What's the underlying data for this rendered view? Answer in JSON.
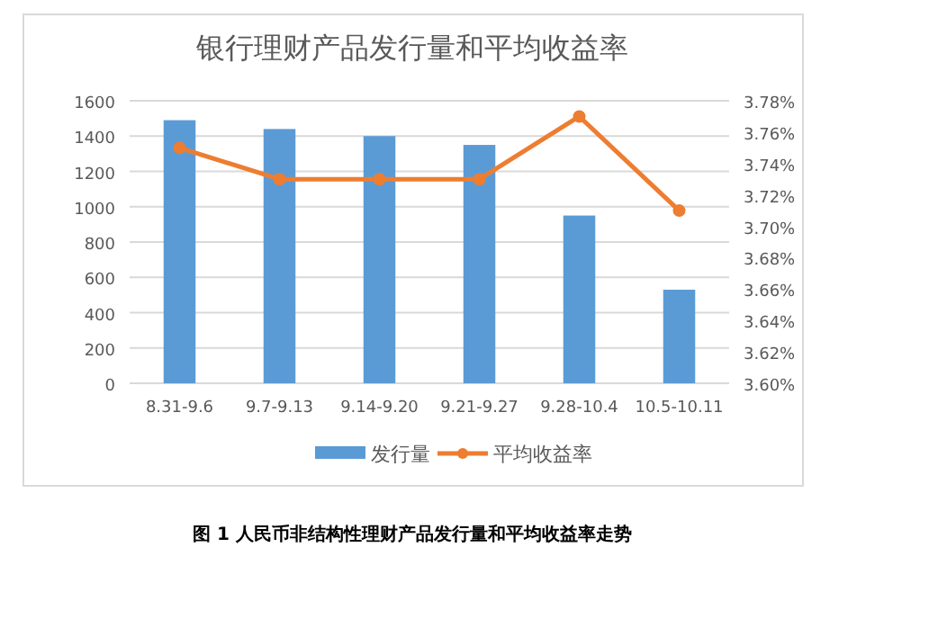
{
  "chart_data": {
    "type": "bar",
    "title": "银行理财产品发行量和平均收益率",
    "categories": [
      "8.31-9.6",
      "9.7-9.13",
      "9.14-9.20",
      "9.21-9.27",
      "9.28-10.4",
      "10.5-10.11"
    ],
    "series": [
      {
        "name": "发行量",
        "color": "#5b9bd5",
        "values": [
          1490,
          1440,
          1400,
          1350,
          950,
          530
        ]
      },
      {
        "name": "平均收益率",
        "type": "line",
        "axis": "y2",
        "color": "#ed7d31",
        "marker": "circle",
        "values": [
          3.75,
          3.73,
          3.73,
          3.73,
          3.77,
          3.71
        ]
      }
    ],
    "ylim": [
      0,
      1600
    ],
    "yticks": [
      0,
      200,
      400,
      600,
      800,
      1000,
      1200,
      1400,
      1600
    ],
    "y2lim": [
      3.6,
      3.78
    ],
    "y2ticks": [
      {
        "value": 3.6,
        "label": "3.60%"
      },
      {
        "value": 3.62,
        "label": "3.62%"
      },
      {
        "value": 3.64,
        "label": "3.64%"
      },
      {
        "value": 3.66,
        "label": "3.66%"
      },
      {
        "value": 3.68,
        "label": "3.68%"
      },
      {
        "value": 3.7,
        "label": "3.70%"
      },
      {
        "value": 3.72,
        "label": "3.72%"
      },
      {
        "value": 3.74,
        "label": "3.74%"
      },
      {
        "value": 3.76,
        "label": "3.76%"
      },
      {
        "value": 3.78,
        "label": "3.78%"
      }
    ],
    "grid": "y",
    "legend": "bottom",
    "annotations": [
      "图 1 人民币非结构性理财产品发行量和平均收益率走势"
    ]
  }
}
